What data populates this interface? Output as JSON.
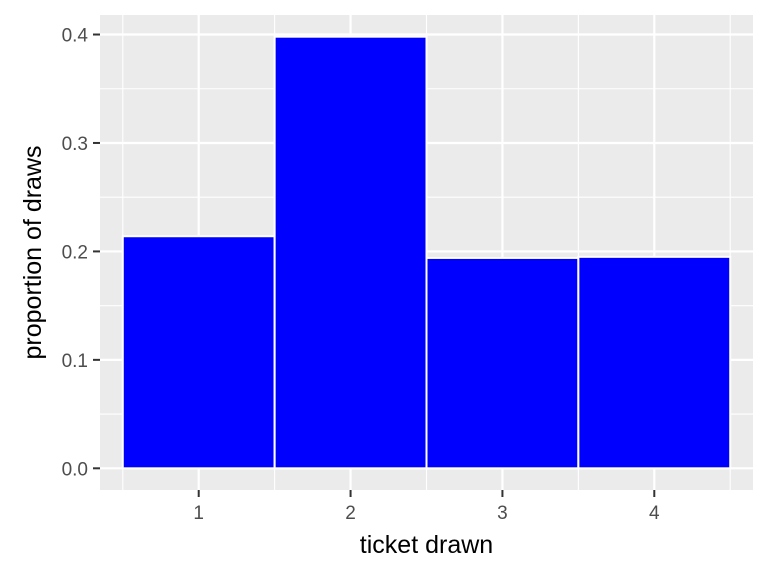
{
  "chart_data": {
    "type": "bar",
    "title": "",
    "xlabel": "ticket drawn",
    "ylabel": "proportion of draws",
    "categories": [
      "1",
      "2",
      "3",
      "4"
    ],
    "values": [
      0.214,
      0.398,
      0.194,
      0.195
    ],
    "ylim": [
      -0.02,
      0.418
    ],
    "yticks": [
      0.0,
      0.1,
      0.2,
      0.3,
      0.4
    ],
    "ytick_labels": [
      "0.0",
      "0.1",
      "0.2",
      "0.3",
      "0.4"
    ],
    "xlim": [
      0.35,
      4.65
    ],
    "grid": true,
    "legend": "none",
    "colors": {
      "bar_fill": "#0000ff",
      "bar_outline": "#ffffff",
      "panel_background": "#ebebeb",
      "grid": "#ffffff",
      "tick_text": "#4d4d4d",
      "axis_title_text": "#000000"
    }
  }
}
